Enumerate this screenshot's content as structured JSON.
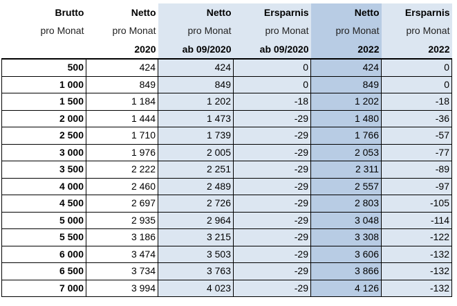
{
  "headers": [
    {
      "line1": "Brutto",
      "line2": "pro Monat",
      "line3": ""
    },
    {
      "line1": "Netto",
      "line2": "pro Monat",
      "line3": "2020"
    },
    {
      "line1": "Netto",
      "line2": "pro Monat",
      "line3": "ab 09/2020"
    },
    {
      "line1": "Ersparnis",
      "line2": "pro Monat",
      "line3": "ab 09/2020"
    },
    {
      "line1": "Netto",
      "line2": "pro Monat",
      "line3": "2022"
    },
    {
      "line1": "Ersparnis",
      "line2": "pro Monat",
      "line3": "2022"
    }
  ],
  "colors": {
    "light_blue": "#dce6f1",
    "mid_blue": "#b8cce4",
    "grid": "#000000"
  },
  "rows": [
    [
      "500",
      "424",
      "424",
      "0",
      "424",
      "0"
    ],
    [
      "1 000",
      "849",
      "849",
      "0",
      "849",
      "0"
    ],
    [
      "1 500",
      "1 184",
      "1 202",
      "-18",
      "1 202",
      "-18"
    ],
    [
      "2 000",
      "1 444",
      "1 473",
      "-29",
      "1 480",
      "-36"
    ],
    [
      "2 500",
      "1 710",
      "1 739",
      "-29",
      "1 766",
      "-57"
    ],
    [
      "3 000",
      "1 976",
      "2 005",
      "-29",
      "2 053",
      "-77"
    ],
    [
      "3 500",
      "2 222",
      "2 251",
      "-29",
      "2 311",
      "-89"
    ],
    [
      "4 000",
      "2 460",
      "2 489",
      "-29",
      "2 557",
      "-97"
    ],
    [
      "4 500",
      "2 697",
      "2 726",
      "-29",
      "2 803",
      "-105"
    ],
    [
      "5 000",
      "2 935",
      "2 964",
      "-29",
      "3 048",
      "-114"
    ],
    [
      "5 500",
      "3 186",
      "3 215",
      "-29",
      "3 308",
      "-122"
    ],
    [
      "6 000",
      "3 474",
      "3 503",
      "-29",
      "3 606",
      "-132"
    ],
    [
      "6 500",
      "3 734",
      "3 763",
      "-29",
      "3 866",
      "-132"
    ],
    [
      "7 000",
      "3 994",
      "4 023",
      "-29",
      "4 126",
      "-132"
    ]
  ]
}
